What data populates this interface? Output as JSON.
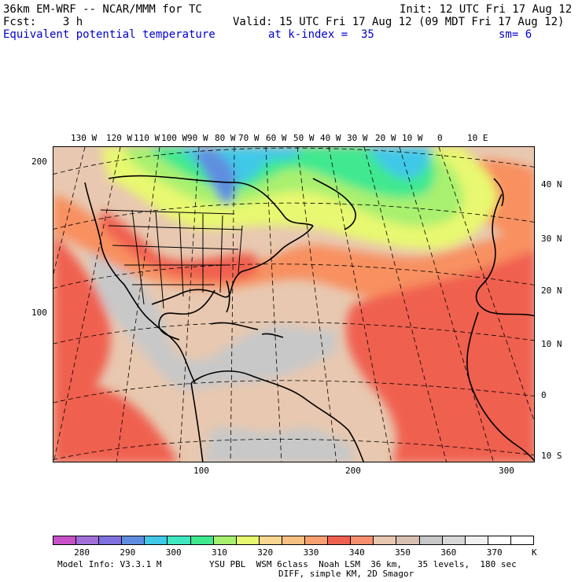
{
  "header": {
    "line1_left": "36km EM-WRF -- NCAR/MMM for TC",
    "line1_right": "Init: 12 UTC Fri 17 Aug 12",
    "line2_left": "Fcst:    3 h",
    "line2_right": "Valid: 15 UTC Fri 17 Aug 12 (09 MDT Fri 17 Aug 12)",
    "field_name": "Equivalent potential temperature",
    "level": "at k-index =  35",
    "smoothing": "sm= 6"
  },
  "map": {
    "top_lon_labels": [
      "130 W",
      "120 W",
      "110 W",
      "100 W",
      "90 W",
      "80 W",
      "70 W",
      "60 W",
      "50 W",
      "40 W",
      "30 W",
      "20 W",
      "10 W",
      "0",
      "10 E"
    ],
    "right_lat_labels": [
      "40 N",
      "30 N",
      "20 N",
      "10 N",
      "0",
      "10 S"
    ],
    "left_grid_labels": [
      "200",
      "100"
    ],
    "bottom_grid_labels": [
      "100",
      "200",
      "300"
    ],
    "field_colors": {
      "cold_blue": "#5f8ee0",
      "cyan": "#40c8e8",
      "green": "#40e890",
      "light_green": "#a8f070",
      "yellow": "#e8f870",
      "orange_light": "#f8c080",
      "orange": "#f89060",
      "red": "#f06050",
      "red_deep": "#e84840",
      "tan": "#e8c8b0",
      "gray": "#c8c8c8"
    }
  },
  "colorbar": {
    "colors": [
      "#c850c8",
      "#a070d8",
      "#8070e0",
      "#5f8ee0",
      "#40c8e8",
      "#40e8c0",
      "#40e890",
      "#a8f070",
      "#e8f870",
      "#f8d890",
      "#f8c080",
      "#f8a070",
      "#f06050",
      "#f89070",
      "#e8c8b0",
      "#d8c0b0",
      "#c8c8c8",
      "#d8d8d8",
      "#f0f0f0",
      "#ffffff",
      "#ffffff"
    ],
    "labels": [
      "280",
      "290",
      "300",
      "310",
      "320",
      "330",
      "340",
      "350",
      "360",
      "370"
    ],
    "unit": "K"
  },
  "footer": {
    "line1_left": "Model Info: V3.3.1 M",
    "line1_right": "YSU PBL  WSM 6class  Noah LSM  36 km,   35 levels,  180 sec",
    "line2": "DIFF, simple KM, 2D Smagor"
  }
}
